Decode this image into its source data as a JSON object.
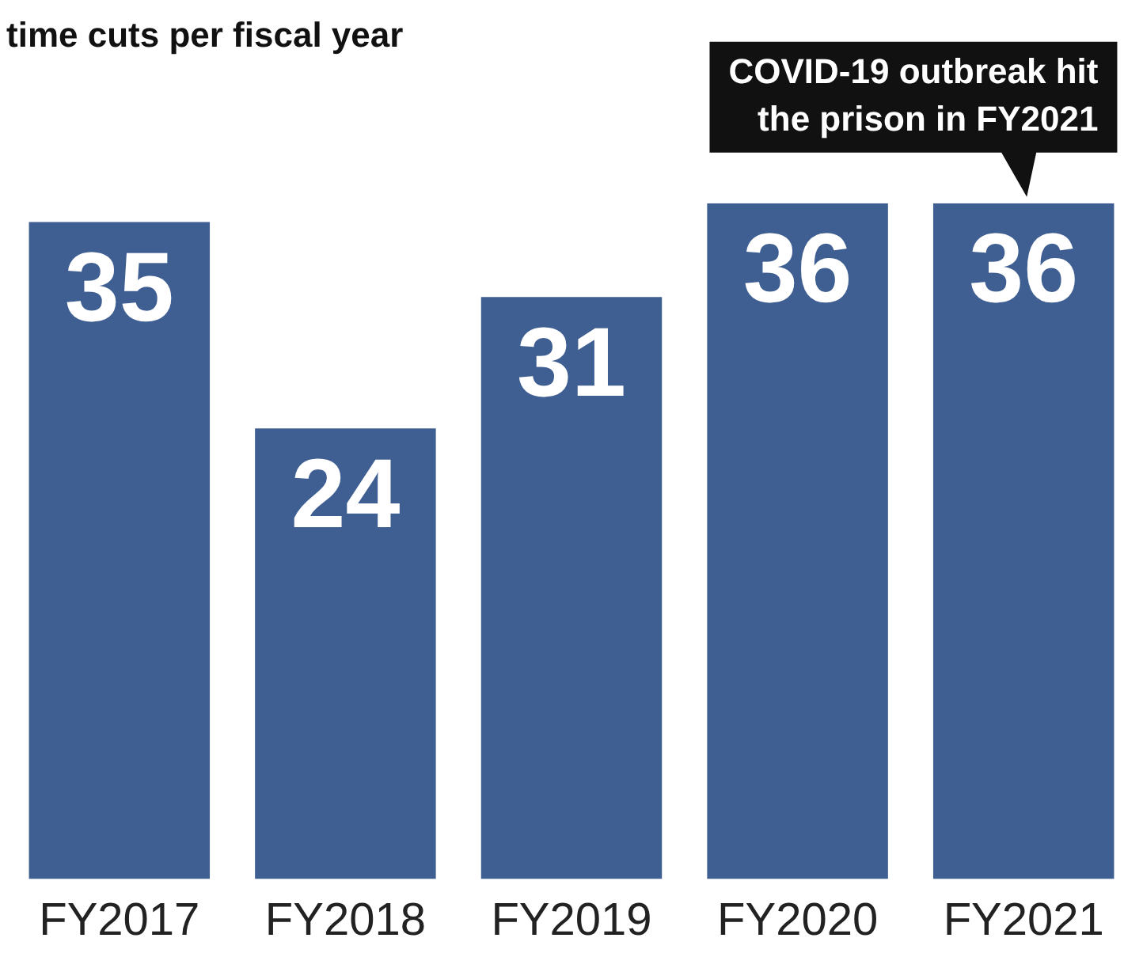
{
  "chart_data": {
    "type": "bar",
    "title": "time cuts per fiscal year",
    "categories": [
      "FY2017",
      "FY2018",
      "FY2019",
      "FY2020",
      "FY2021"
    ],
    "values": [
      35,
      24,
      31,
      36,
      36
    ],
    "color": "#3f5f93",
    "ylim": [
      0,
      36
    ],
    "data_labels": true,
    "grid": false,
    "legend": false,
    "annotations": [
      {
        "text": "COVID-19 outbreak hit\nthe prison in FY2021",
        "x": "FY2021",
        "y": 36
      }
    ]
  }
}
